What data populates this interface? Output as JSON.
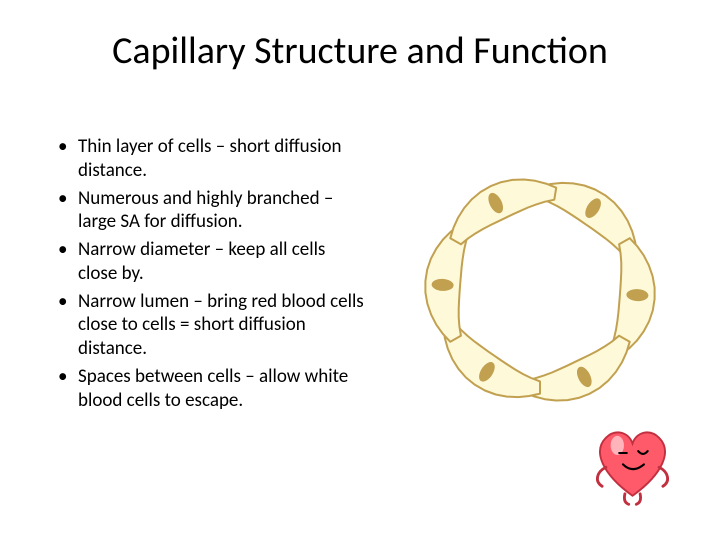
{
  "title": "Capillary Structure and Function",
  "bullets": [
    "Thin layer of cells – short diffusion distance.",
    "Numerous and highly branched – large SA for diffusion.",
    "Narrow diameter – keep all cells close by.",
    "Narrow lumen – bring red blood cells close to cells = short diffusion distance.",
    "Spaces between cells – allow white blood cells to escape."
  ],
  "capillary": {
    "cell_count": 6,
    "outer_radius": 115,
    "inner_radius": 80,
    "cell_fill": "#fef9d9",
    "cell_stroke": "#c1a050",
    "cell_stroke_width": 2,
    "nucleus_fill": "#c1a050",
    "nucleus_rx": 11,
    "nucleus_ry": 6,
    "background": "#ffffff"
  },
  "heart": {
    "body_fill": "#ff5a6a",
    "outline": "#c23040",
    "outline_width": 2,
    "eye_fill": "#000000",
    "highlight_fill": "#ffffff",
    "mouth_stroke": "#000000",
    "arm_stroke": "#c23040"
  }
}
